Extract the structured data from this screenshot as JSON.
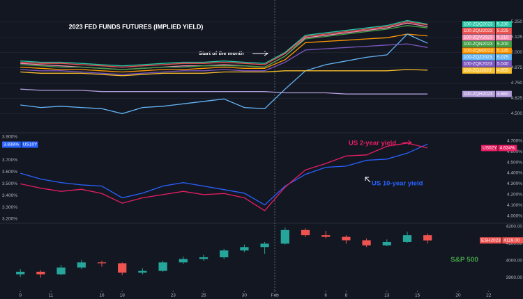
{
  "chart_data": [
    {
      "type": "line",
      "title": "2023 FED FUNDS FUTURES (IMPLIED YIELD)",
      "annotation": "Start of the month",
      "x": [
        0,
        2,
        4,
        6,
        8,
        10,
        12,
        14,
        16,
        18,
        20,
        22,
        24,
        26,
        28,
        30,
        32,
        34,
        36,
        38,
        40
      ],
      "xlim": [
        -2,
        48
      ],
      "ylim": [
        4.36,
        5.4
      ],
      "yticks": [
        {
          "value": 4.5,
          "label": "4.500"
        },
        {
          "value": 4.625,
          "label": "4.625"
        },
        {
          "value": 4.75,
          "label": "4.750"
        },
        {
          "value": 4.875,
          "label": "4.875"
        },
        {
          "value": 5.0,
          "label": "5.000"
        },
        {
          "value": 5.125,
          "label": "5.125"
        },
        {
          "value": 5.25,
          "label": "5.250"
        }
      ],
      "grid": true,
      "series": [
        {
          "name": "100-ZQQ2023",
          "color": "#26c6a6",
          "last": {
            "value": 5.23,
            "label": "5.230"
          },
          "values": [
            4.93,
            4.92,
            4.92,
            4.91,
            4.9,
            4.89,
            4.9,
            4.91,
            4.92,
            4.92,
            4.93,
            4.92,
            4.91,
            5.0,
            5.14,
            5.16,
            5.18,
            5.2,
            5.22,
            5.26,
            5.23
          ]
        },
        {
          "name": "100-ZQU2023",
          "color": "#ef5350",
          "last": {
            "value": 5.225,
            "label": "5.225"
          },
          "values": [
            4.92,
            4.91,
            4.91,
            4.9,
            4.89,
            4.88,
            4.89,
            4.9,
            4.91,
            4.91,
            4.92,
            4.91,
            4.9,
            4.99,
            5.13,
            5.15,
            5.17,
            5.19,
            5.21,
            5.25,
            5.225
          ]
        },
        {
          "name": "100-ZQV2023",
          "color": "#f48fb1",
          "last": {
            "value": 5.21,
            "label": "5.210"
          },
          "values": [
            4.91,
            4.9,
            4.89,
            4.88,
            4.87,
            4.86,
            4.87,
            4.88,
            4.89,
            4.89,
            4.9,
            4.89,
            4.88,
            4.97,
            5.12,
            5.14,
            5.16,
            5.18,
            5.2,
            5.24,
            5.21
          ]
        },
        {
          "name": "100-ZQN2023",
          "color": "#43a047",
          "last": {
            "value": 5.2,
            "label": "5.200"
          },
          "values": [
            4.9,
            4.89,
            4.88,
            4.88,
            4.87,
            4.86,
            4.87,
            4.88,
            4.88,
            4.89,
            4.89,
            4.89,
            4.88,
            4.97,
            5.11,
            5.13,
            5.15,
            5.17,
            5.19,
            5.22,
            5.2
          ]
        },
        {
          "name": "100-ZQM2023",
          "color": "#ff9800",
          "last": {
            "value": 5.135,
            "label": "5.135"
          },
          "values": [
            4.88,
            4.87,
            4.86,
            4.86,
            4.85,
            4.84,
            4.85,
            4.86,
            4.86,
            4.87,
            4.88,
            4.87,
            4.87,
            4.94,
            5.08,
            5.09,
            5.1,
            5.11,
            5.12,
            5.15,
            5.135
          ]
        },
        {
          "name": "100-ZQZ2023",
          "color": "#64b5f6",
          "last": {
            "value": 5.075,
            "label": "5.075"
          },
          "values": [
            4.57,
            4.55,
            4.56,
            4.55,
            4.54,
            4.5,
            4.55,
            4.56,
            4.58,
            4.6,
            4.62,
            4.55,
            4.54,
            4.7,
            4.85,
            4.9,
            4.93,
            4.96,
            4.98,
            5.15,
            5.075
          ]
        },
        {
          "name": "100-ZQK2023",
          "color": "#7e57c2",
          "last": {
            "value": 5.04,
            "label": "5.040"
          },
          "values": [
            4.86,
            4.85,
            4.85,
            4.84,
            4.83,
            4.82,
            4.83,
            4.84,
            4.85,
            4.85,
            4.86,
            4.85,
            4.85,
            4.92,
            5.02,
            5.03,
            5.04,
            5.05,
            5.06,
            5.07,
            5.04
          ]
        },
        {
          "name": "100-ZQJ2023",
          "color": "#fbc02d",
          "last": {
            "value": 4.855,
            "label": "4.855"
          },
          "values": [
            4.84,
            4.83,
            4.83,
            4.83,
            4.82,
            4.81,
            4.82,
            4.83,
            4.83,
            4.83,
            4.84,
            4.84,
            4.84,
            4.85,
            4.85,
            4.85,
            4.85,
            4.85,
            4.85,
            4.86,
            4.855
          ]
        },
        {
          "name": "100-ZQH2023",
          "color": "#b39ddb",
          "last": {
            "value": 4.66,
            "label": "4.660"
          },
          "values": [
            4.7,
            4.69,
            4.69,
            4.69,
            4.68,
            4.68,
            4.68,
            4.68,
            4.68,
            4.68,
            4.68,
            4.68,
            4.68,
            4.67,
            4.67,
            4.67,
            4.66,
            4.66,
            4.66,
            4.66,
            4.66
          ]
        }
      ]
    },
    {
      "type": "line",
      "x": [
        0,
        2,
        4,
        6,
        8,
        10,
        12,
        14,
        16,
        18,
        20,
        22,
        24,
        26,
        28,
        30,
        32,
        34,
        36,
        38,
        40
      ],
      "xlim": [
        -2,
        48
      ],
      "ylim": [
        3.17,
        3.91
      ],
      "yticks": [
        {
          "value": 3.2,
          "label": "3.200%"
        },
        {
          "value": 3.3,
          "label": "3.300%"
        },
        {
          "value": 3.4,
          "label": "3.400%"
        },
        {
          "value": 3.5,
          "label": "3.500%"
        },
        {
          "value": 3.6,
          "label": "3.600%"
        },
        {
          "value": 3.7,
          "label": "3.700%"
        },
        {
          "value": 3.9,
          "label": "3.900%"
        }
      ],
      "y2lim": [
        3.94,
        4.75
      ],
      "y2ticks": [
        {
          "value": 4.0,
          "label": "4.000%"
        },
        {
          "value": 4.1,
          "label": "4.100%"
        },
        {
          "value": 4.2,
          "label": "4.200%"
        },
        {
          "value": 4.3,
          "label": "4.300%"
        },
        {
          "value": 4.4,
          "label": "4.400%"
        },
        {
          "value": 4.5,
          "label": "4.500%"
        },
        {
          "value": 4.6,
          "label": "4.600%"
        },
        {
          "value": 4.7,
          "label": "4.700%"
        }
      ],
      "series": [
        {
          "name": "US10Y",
          "color": "#2962ff",
          "axis": "y",
          "last": {
            "value": 3.838,
            "label": "3.838%"
          },
          "values": [
            3.59,
            3.54,
            3.51,
            3.49,
            3.48,
            3.38,
            3.42,
            3.48,
            3.51,
            3.48,
            3.45,
            3.42,
            3.32,
            3.48,
            3.58,
            3.64,
            3.65,
            3.7,
            3.71,
            3.76,
            3.838
          ]
        },
        {
          "name": "US02Y",
          "color": "#e91e63",
          "axis": "y2",
          "last": {
            "value": 4.634,
            "label": "4.634%"
          },
          "values": [
            4.3,
            4.26,
            4.23,
            4.25,
            4.21,
            4.12,
            4.17,
            4.2,
            4.23,
            4.2,
            4.21,
            4.17,
            4.05,
            4.27,
            4.43,
            4.49,
            4.56,
            4.57,
            4.65,
            4.68,
            4.634
          ]
        }
      ],
      "annotations": [
        {
          "text": "US 2-year yield",
          "color": "#e91e63"
        },
        {
          "text": "US 10-year yield",
          "color": "#2962ff"
        }
      ]
    },
    {
      "type": "candlestick",
      "name": "ESH2023",
      "annotation": "S&P 500",
      "last": {
        "value": 4119,
        "label": "4119.00"
      },
      "up_color": "#26a69a",
      "down_color": "#ef5350",
      "x": [
        0,
        2,
        4,
        6,
        8,
        10,
        12,
        14,
        16,
        18,
        20,
        22,
        24,
        26,
        28,
        30,
        32,
        34,
        36,
        38,
        40
      ],
      "xlim": [
        -2,
        48
      ],
      "xticks": [
        {
          "value": 0,
          "label": "9"
        },
        {
          "value": 3,
          "label": "11"
        },
        {
          "value": 8,
          "label": "16"
        },
        {
          "value": 10,
          "label": "18"
        },
        {
          "value": 15,
          "label": "23"
        },
        {
          "value": 18,
          "label": "25"
        },
        {
          "value": 22,
          "label": "30"
        },
        {
          "value": 25,
          "label": "Feb"
        },
        {
          "value": 30,
          "label": "6"
        },
        {
          "value": 32,
          "label": "8"
        },
        {
          "value": 36,
          "label": "13"
        },
        {
          "value": 39,
          "label": "15"
        },
        {
          "value": 43,
          "label": "20"
        },
        {
          "value": 46,
          "label": "22"
        }
      ],
      "ylim": [
        3824,
        4216
      ],
      "yticks": [
        {
          "value": 3900,
          "label": "3900.00"
        },
        {
          "value": 4000,
          "label": "4000.00"
        },
        {
          "value": 4100,
          "label": "4100.00"
        },
        {
          "value": 4200,
          "label": "4200.00"
        }
      ],
      "open": [
        3920,
        3935,
        3920,
        3960,
        3990,
        3985,
        3930,
        3940,
        3990,
        4010,
        4020,
        4060,
        4080,
        4100,
        4180,
        4150,
        4140,
        4120,
        4090,
        4110,
        4150
      ],
      "high": [
        3950,
        3945,
        3975,
        4005,
        4000,
        3990,
        3955,
        4000,
        4025,
        4035,
        4070,
        4095,
        4110,
        4195,
        4190,
        4175,
        4150,
        4130,
        4125,
        4170,
        4160
      ],
      "low": [
        3905,
        3900,
        3915,
        3950,
        3965,
        3915,
        3920,
        3935,
        3980,
        4000,
        4010,
        4050,
        4040,
        4095,
        4140,
        4130,
        4100,
        4080,
        4085,
        4105,
        4100
      ],
      "close": [
        3935,
        3920,
        3960,
        3990,
        3985,
        3930,
        3940,
        3990,
        4010,
        4020,
        4060,
        4080,
        4100,
        4180,
        4150,
        4140,
        4120,
        4090,
        4110,
        4150,
        4119
      ]
    }
  ]
}
